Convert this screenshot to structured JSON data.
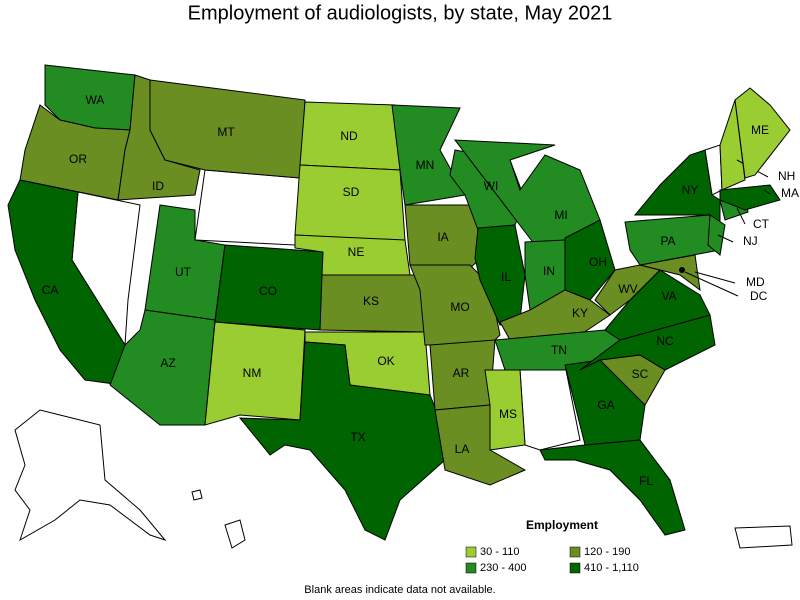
{
  "chart_data": {
    "type": "choropleth",
    "title": "Employment of audiologists, by state, May 2021",
    "legend": {
      "title": "Employment",
      "items": [
        {
          "label": "30 - 110",
          "color": "#9acd32"
        },
        {
          "label": "120 - 190",
          "color": "#6b8e23"
        },
        {
          "label": "230 - 400",
          "color": "#228b22"
        },
        {
          "label": "410 - 1,110",
          "color": "#006400"
        }
      ]
    },
    "regions": [
      {
        "name": "WA",
        "group": 2
      },
      {
        "name": "OR",
        "group": 1
      },
      {
        "name": "CA",
        "group": 3
      },
      {
        "name": "ID",
        "group": 1
      },
      {
        "name": "MT",
        "group": 1
      },
      {
        "name": "UT",
        "group": 2
      },
      {
        "name": "AZ",
        "group": 2
      },
      {
        "name": "CO",
        "group": 3
      },
      {
        "name": "NM",
        "group": 0
      },
      {
        "name": "ND",
        "group": 0
      },
      {
        "name": "SD",
        "group": 0
      },
      {
        "name": "NE",
        "group": 0
      },
      {
        "name": "KS",
        "group": 1
      },
      {
        "name": "OK",
        "group": 0
      },
      {
        "name": "TX",
        "group": 3
      },
      {
        "name": "MN",
        "group": 2
      },
      {
        "name": "IA",
        "group": 1
      },
      {
        "name": "MO",
        "group": 1
      },
      {
        "name": "AR",
        "group": 1
      },
      {
        "name": "LA",
        "group": 1
      },
      {
        "name": "WI",
        "group": 2
      },
      {
        "name": "IL",
        "group": 3
      },
      {
        "name": "MI",
        "group": 2
      },
      {
        "name": "IN",
        "group": 2
      },
      {
        "name": "OH",
        "group": 3
      },
      {
        "name": "KY",
        "group": 1
      },
      {
        "name": "TN",
        "group": 2
      },
      {
        "name": "MS",
        "group": 0
      },
      {
        "name": "GA",
        "group": 3
      },
      {
        "name": "FL",
        "group": 3
      },
      {
        "name": "SC",
        "group": 1
      },
      {
        "name": "NC",
        "group": 3
      },
      {
        "name": "VA",
        "group": 3
      },
      {
        "name": "WV",
        "group": 1
      },
      {
        "name": "MD",
        "group": 1
      },
      {
        "name": "DC",
        "group": 3
      },
      {
        "name": "PA",
        "group": 2
      },
      {
        "name": "NY",
        "group": 3
      },
      {
        "name": "NJ",
        "group": 2
      },
      {
        "name": "CT",
        "group": 2
      },
      {
        "name": "MA",
        "group": 3
      },
      {
        "name": "NH",
        "group": 0
      },
      {
        "name": "ME",
        "group": 0
      }
    ],
    "footnote": "Blank areas indicate data not available."
  }
}
